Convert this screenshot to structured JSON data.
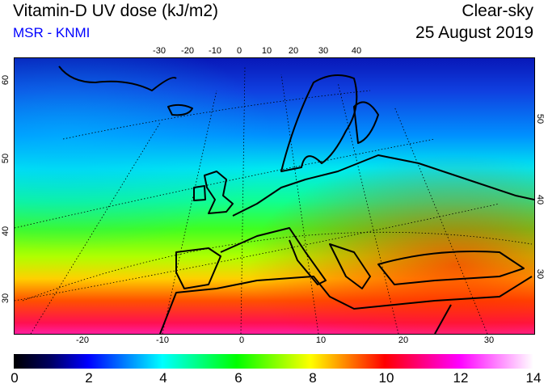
{
  "header": {
    "title": "Vitamin-D UV dose (kJ/m2)",
    "source": "MSR - KNMI",
    "condition": "Clear-sky",
    "date": "25 August 2019"
  },
  "map": {
    "top_lon_labels": [
      "-30",
      "-20",
      "-10",
      "0",
      "10",
      "20",
      "30",
      "40"
    ],
    "bottom_lon_labels": [
      "-20",
      "-10",
      "0",
      "10",
      "20",
      "30"
    ],
    "left_lat_labels": [
      "60",
      "50",
      "40",
      "30"
    ],
    "right_lat_labels": [
      "50",
      "40",
      "30"
    ]
  },
  "colorbar": {
    "labels": [
      "0",
      "2",
      "4",
      "6",
      "8",
      "10",
      "12",
      "14"
    ],
    "min": 0,
    "max": 14,
    "unit": "kJ/m2",
    "colors": [
      "#000000",
      "#0000ff",
      "#00ffff",
      "#00ff00",
      "#ffff00",
      "#ff0000",
      "#ff00ff",
      "#ffffff"
    ]
  }
}
